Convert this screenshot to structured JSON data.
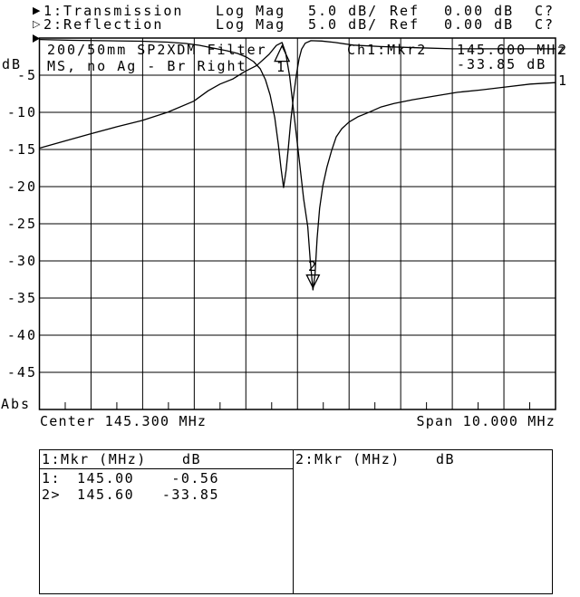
{
  "accent_color": "#000000",
  "background_color": "#ffffff",
  "header": {
    "traces": [
      {
        "bullet": "▶",
        "label": "1:Transmission",
        "format": "Log Mag",
        "scale": "5.0 dB/",
        "ref_label": "Ref",
        "ref_value": "0.00 dB",
        "cal_status": "C?"
      },
      {
        "bullet": "▷",
        "label": "2:Reflection",
        "format": "Log Mag",
        "scale": "5.0 dB/",
        "ref_label": "Ref",
        "ref_value": "0.00 dB",
        "cal_status": "C?"
      }
    ]
  },
  "plot": {
    "title_line1": "200/50mm SP2XDM Filter",
    "title_line2": "MS, no Ag - Br Right",
    "annotation": {
      "marker_ref": "Ch1:Mkr2",
      "freq": "145.600 MHz",
      "level": "-33.85 dB"
    },
    "y_axis": {
      "unit": "dB",
      "ticks": [
        "-5",
        "-10",
        "-15",
        "-20",
        "-25",
        "-30",
        "-35",
        "-40",
        "-45"
      ],
      "mode_label": "Abs"
    },
    "x_axis": {
      "center": "Center 145.300 MHz",
      "span": "Span 10.000 MHz"
    },
    "trace_end_labels": {
      "trace1": "1",
      "trace2": "2"
    },
    "marker_labels": {
      "m1": "1",
      "m2": "2"
    }
  },
  "marker_table": {
    "left": {
      "header_label": "1:Mkr (MHz)",
      "header_unit": "dB",
      "rows": [
        {
          "id": "1:",
          "freq": "145.00",
          "db": "-0.56"
        },
        {
          "id": "2>",
          "freq": "145.60",
          "db": "-33.85"
        }
      ]
    },
    "right": {
      "header_label": "2:Mkr (MHz)",
      "header_unit": "dB",
      "rows": []
    }
  },
  "chart_data": {
    "type": "line",
    "title": "200/50mm SP2XDM Filter — MS, no Ag - Br Right",
    "xlabel": "Frequency (MHz)",
    "ylabel": "dB (Log Mag, 5.0 dB/div, Ref 0.00 dB)",
    "xlim": [
      140.3,
      150.3
    ],
    "center_MHz": 145.3,
    "span_MHz": 10.0,
    "ylim": [
      -50,
      0
    ],
    "grid": "10x10 divisions, on",
    "legend_position": "header rows (1: Transmission, 2: Reflection)",
    "series": [
      {
        "name": "1: Transmission",
        "points": [
          [
            140.31,
            -14.8
          ],
          [
            140.77,
            -13.9
          ],
          [
            141.29,
            -12.9
          ],
          [
            141.82,
            -11.9
          ],
          [
            142.29,
            -11.1
          ],
          [
            142.78,
            -10.0
          ],
          [
            143.29,
            -8.5
          ],
          [
            143.57,
            -7.1
          ],
          [
            143.8,
            -6.2
          ],
          [
            144.05,
            -5.5
          ],
          [
            144.28,
            -4.5
          ],
          [
            144.51,
            -3.7
          ],
          [
            144.75,
            -2.2
          ],
          [
            144.89,
            -1.0
          ],
          [
            145.0,
            -0.6
          ],
          [
            145.07,
            -2.0
          ],
          [
            145.15,
            -5.2
          ],
          [
            145.24,
            -10.7
          ],
          [
            145.33,
            -16.2
          ],
          [
            145.42,
            -21.7
          ],
          [
            145.5,
            -25.4
          ],
          [
            145.55,
            -30.2
          ],
          [
            145.6,
            -33.9
          ],
          [
            145.64,
            -31.8
          ],
          [
            145.68,
            -27.0
          ],
          [
            145.73,
            -22.9
          ],
          [
            145.79,
            -19.9
          ],
          [
            145.87,
            -17.4
          ],
          [
            145.96,
            -15.2
          ],
          [
            146.05,
            -13.3
          ],
          [
            146.16,
            -12.2
          ],
          [
            146.3,
            -11.3
          ],
          [
            146.47,
            -10.6
          ],
          [
            146.65,
            -10.1
          ],
          [
            146.91,
            -9.3
          ],
          [
            147.17,
            -8.8
          ],
          [
            147.53,
            -8.3
          ],
          [
            147.96,
            -7.8
          ],
          [
            148.4,
            -7.3
          ],
          [
            148.84,
            -7.0
          ],
          [
            149.32,
            -6.6
          ],
          [
            149.81,
            -6.2
          ],
          [
            150.3,
            -6.0
          ]
        ]
      },
      {
        "name": "2: Reflection",
        "points": [
          [
            140.31,
            -0.2
          ],
          [
            140.94,
            -0.3
          ],
          [
            141.64,
            -0.37
          ],
          [
            142.29,
            -0.43
          ],
          [
            142.78,
            -0.55
          ],
          [
            143.14,
            -0.73
          ],
          [
            143.4,
            -0.98
          ],
          [
            143.66,
            -1.34
          ],
          [
            143.93,
            -1.71
          ],
          [
            144.14,
            -2.07
          ],
          [
            144.31,
            -2.56
          ],
          [
            144.45,
            -3.17
          ],
          [
            144.58,
            -4.15
          ],
          [
            144.68,
            -5.61
          ],
          [
            144.77,
            -7.68
          ],
          [
            144.86,
            -10.73
          ],
          [
            144.93,
            -14.39
          ],
          [
            144.98,
            -17.44
          ],
          [
            145.03,
            -20.12
          ],
          [
            145.08,
            -17.8
          ],
          [
            145.12,
            -15.0
          ],
          [
            145.17,
            -11.2
          ],
          [
            145.22,
            -8.0
          ],
          [
            145.28,
            -4.9
          ],
          [
            145.33,
            -2.8
          ],
          [
            145.38,
            -1.5
          ],
          [
            145.45,
            -0.7
          ],
          [
            145.56,
            -0.35
          ],
          [
            145.77,
            -0.4
          ],
          [
            146.03,
            -0.6
          ],
          [
            146.38,
            -0.95
          ],
          [
            146.91,
            -1.15
          ],
          [
            147.61,
            -1.3
          ],
          [
            148.31,
            -1.45
          ],
          [
            149.37,
            -1.45
          ],
          [
            150.3,
            -1.45
          ]
        ]
      }
    ],
    "markers": [
      {
        "n": 1,
        "trace": 1,
        "freq_MHz": 145.0,
        "dB": -0.56,
        "glyph": "hollow triangle up"
      },
      {
        "n": 2,
        "trace": 1,
        "freq_MHz": 145.6,
        "dB": -33.85,
        "glyph": "hollow arrow down",
        "active": true
      }
    ]
  }
}
